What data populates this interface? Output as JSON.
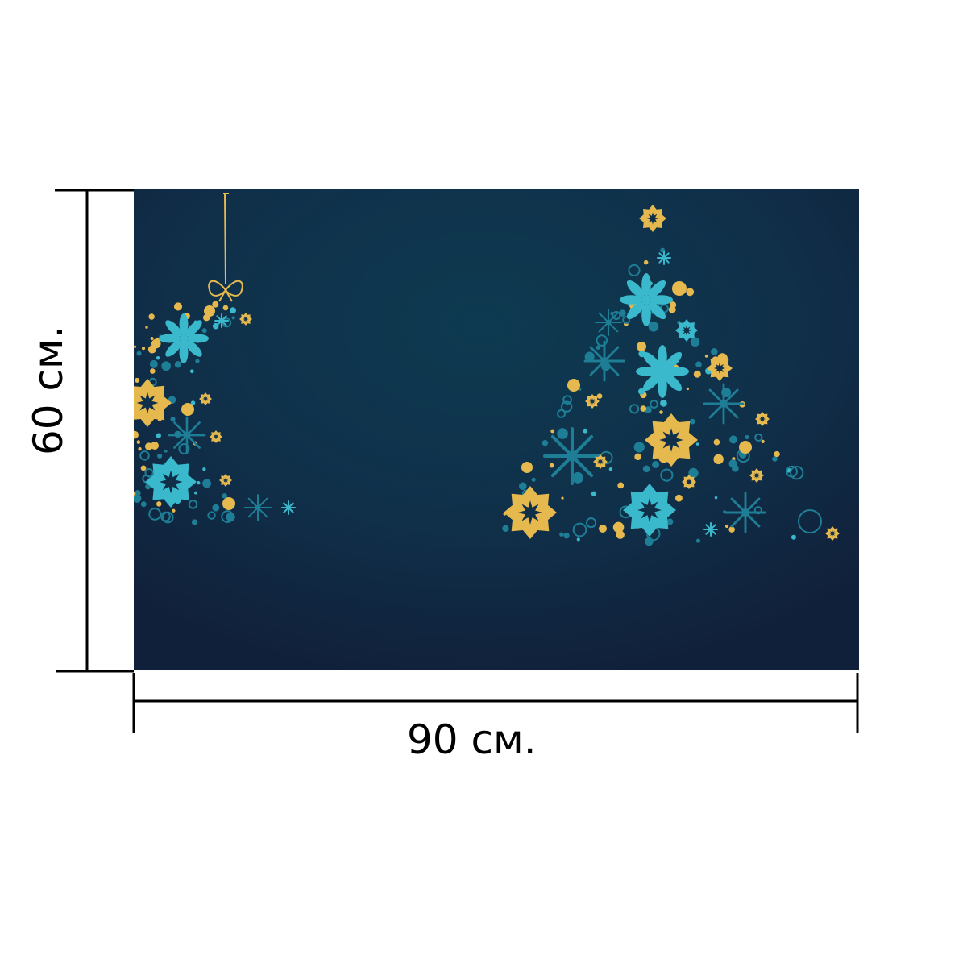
{
  "artwork": {
    "background_colors": [
      "#0d3a50",
      "#10304a",
      "#11203a"
    ],
    "ornament_colors": {
      "teal": "#3ab8cc",
      "deep_teal": "#1d7e95",
      "gold": "#e6b94f"
    },
    "motifs": [
      "christmas-tree",
      "bauble-ornament",
      "snowflake-icon",
      "flower-icon",
      "star-icon"
    ]
  },
  "dimensions": {
    "width_label": "90 см.",
    "height_label": "60 см.",
    "line_color": "#000000"
  }
}
